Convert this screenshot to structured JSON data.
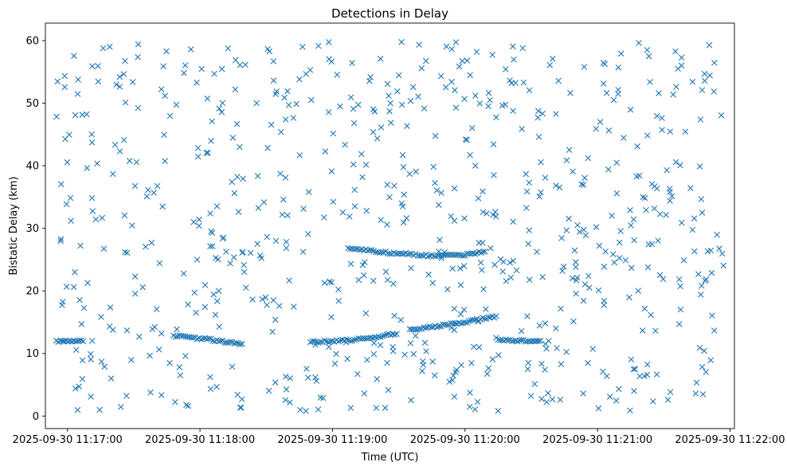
{
  "chart_data": {
    "type": "scatter",
    "title": "Detections in Delay",
    "xlabel": "Time (UTC)",
    "ylabel": "Bistatic Delay (km)",
    "marker": "x",
    "color": "#1f77b4",
    "grid": false,
    "legend": "none",
    "xlim": [
      "2025-09-30 11:16:50",
      "2025-09-30 11:22:02"
    ],
    "ylim": [
      -2,
      62.8
    ],
    "x_ticks": [
      "2025-09-30 11:17:00",
      "2025-09-30 11:18:00",
      "2025-09-30 11:19:00",
      "2025-09-30 11:20:00",
      "2025-09-30 11:21:00",
      "2025-09-30 11:22:00"
    ],
    "y_ticks": [
      0,
      10,
      20,
      30,
      40,
      50,
      60
    ],
    "x_range": [
      "2025-09-30 11:16:55",
      "2025-09-30 11:21:58"
    ],
    "approx_detection_count": 900,
    "tracks": [
      {
        "points": [
          [
            "2025-09-30 11:16:55",
            12.0
          ],
          [
            "2025-09-30 11:17:02",
            12.0
          ],
          [
            "2025-09-30 11:17:08",
            11.9
          ]
        ]
      },
      {
        "points": [
          [
            "2025-09-30 11:17:48",
            12.8
          ],
          [
            "2025-09-30 11:18:05",
            12.2
          ],
          [
            "2025-09-30 11:18:20",
            11.4
          ]
        ]
      },
      {
        "points": [
          [
            "2025-09-30 11:18:50",
            11.8
          ],
          [
            "2025-09-30 11:19:10",
            12.2
          ],
          [
            "2025-09-30 11:19:30",
            13.2
          ]
        ]
      },
      {
        "points": [
          [
            "2025-09-30 11:19:35",
            13.8
          ],
          [
            "2025-09-30 11:19:50",
            14.5
          ],
          [
            "2025-09-30 11:20:00",
            15.0
          ],
          [
            "2025-09-30 11:20:15",
            16.0
          ]
        ]
      },
      {
        "points": [
          [
            "2025-09-30 11:20:15",
            12.2
          ],
          [
            "2025-09-30 11:20:30",
            12.0
          ],
          [
            "2025-09-30 11:20:35",
            11.9
          ]
        ]
      },
      {
        "points": [
          [
            "2025-09-30 11:19:07",
            26.8
          ],
          [
            "2025-09-30 11:19:25",
            26.1
          ],
          [
            "2025-09-30 11:19:45",
            25.6
          ],
          [
            "2025-09-30 11:20:00",
            25.8
          ],
          [
            "2025-09-30 11:20:10",
            26.3
          ]
        ]
      }
    ]
  }
}
